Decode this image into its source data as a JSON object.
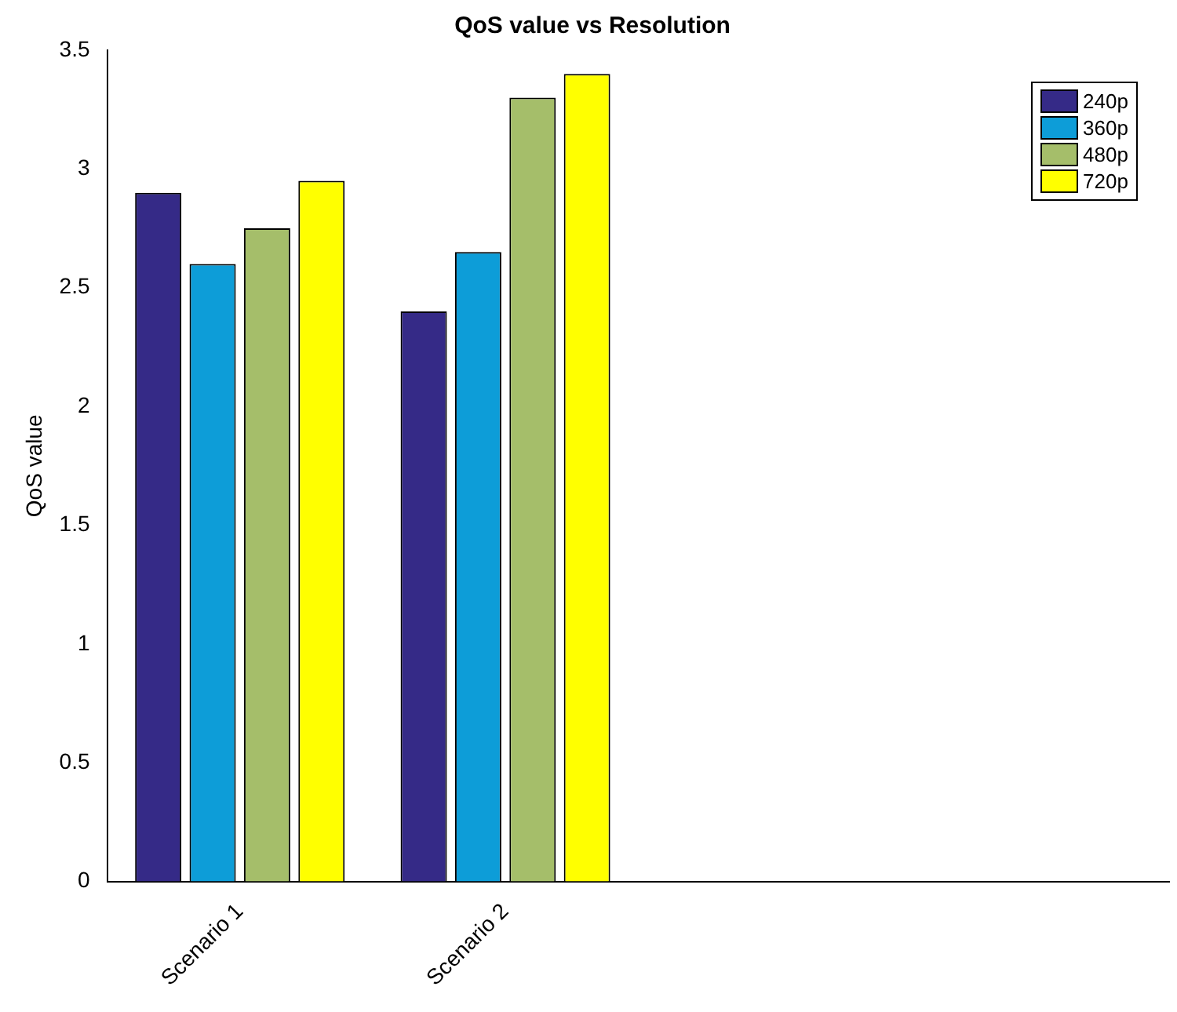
{
  "chart_data": {
    "type": "bar",
    "title": "QoS value vs Resolution",
    "ylabel": "QoS value",
    "categories": [
      "Scenario 1",
      "Scenario 2",
      null,
      null
    ],
    "series": [
      {
        "name": "240p",
        "color": "#352a87",
        "values": [
          2.9,
          2.4,
          null,
          null
        ]
      },
      {
        "name": "360p",
        "color": "#0d9dd8",
        "values": [
          2.6,
          2.65,
          null,
          null
        ]
      },
      {
        "name": "480p",
        "color": "#a5be6a",
        "values": [
          2.75,
          3.3,
          null,
          null
        ]
      },
      {
        "name": "720p",
        "color": "#ffff00",
        "values": [
          2.95,
          3.4,
          null,
          null
        ]
      }
    ],
    "ylim": [
      0,
      3.5
    ],
    "yticks": [
      0,
      0.5,
      1,
      1.5,
      2,
      2.5,
      3,
      3.5
    ],
    "grid": false,
    "legend": "top right"
  }
}
